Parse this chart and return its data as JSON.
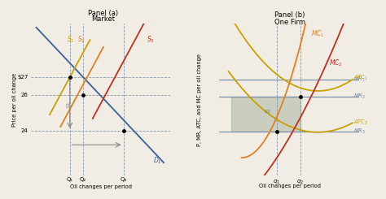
{
  "panel_a_title": "Panel (a)",
  "panel_a_subtitle": "Market",
  "panel_b_title": "Panel (b)",
  "panel_b_subtitle": "One Firm",
  "xlabel": "Oil changes per period",
  "ylabel_a": "Price per oil change",
  "ylabel_b": "P, MR, ATC, and MC per oil change",
  "price_labels": [
    "$27",
    "26",
    "24"
  ],
  "price_values": [
    27,
    26,
    24
  ],
  "q_labels": [
    "Q₁",
    "Q₂",
    "Q₃"
  ],
  "q_values": [
    0.25,
    0.35,
    0.65
  ],
  "q_firm_labels": [
    "q₁",
    "q₂"
  ],
  "q_firm_values": [
    0.42,
    0.6
  ],
  "color_blue": "#3a5f9a",
  "color_orange": "#e08020",
  "color_red": "#c03020",
  "color_yellow": "#c8a000",
  "color_steel": "#708aaa",
  "color_dashed": "#708aaa",
  "color_shading": "#9aaa90",
  "bg_color": "#f2ede4"
}
